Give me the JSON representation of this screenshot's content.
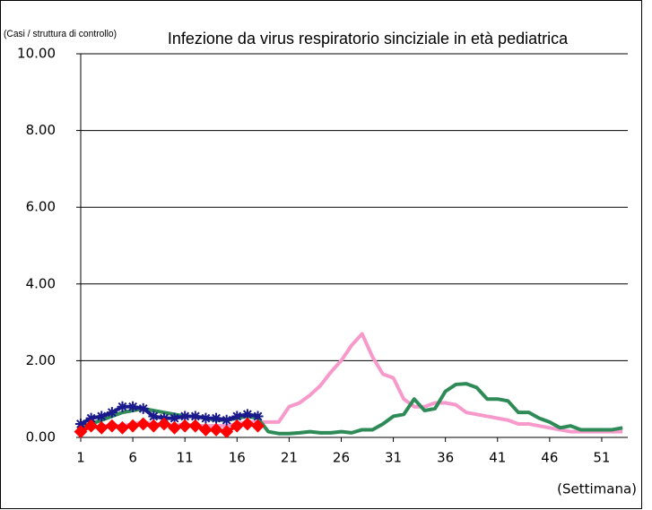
{
  "chart_data": {
    "type": "line",
    "title": "Infezione da virus respiratorio sinciziale in età pediatrica",
    "y_label": "(Casi / struttura di controllo)",
    "x_label": "(Settimana)",
    "x": [
      1,
      2,
      3,
      4,
      5,
      6,
      7,
      8,
      9,
      10,
      11,
      12,
      13,
      14,
      15,
      16,
      17,
      18,
      19,
      20,
      21,
      22,
      23,
      24,
      25,
      26,
      27,
      28,
      29,
      30,
      31,
      32,
      33,
      34,
      35,
      36,
      37,
      38,
      39,
      40,
      41,
      42,
      43,
      44,
      45,
      46,
      47,
      48,
      49,
      50,
      51,
      52,
      53
    ],
    "xlim": [
      1,
      53.5
    ],
    "xticks": [
      1,
      6,
      11,
      16,
      21,
      26,
      31,
      36,
      41,
      46,
      51
    ],
    "ylim": [
      0,
      10
    ],
    "yticks": [
      {
        "value": 0,
        "label": "0.00"
      },
      {
        "value": 2,
        "label": "2.00"
      },
      {
        "value": 4,
        "label": "4.00"
      },
      {
        "value": 6,
        "label": "6.00"
      },
      {
        "value": 8,
        "label": "8.00"
      },
      {
        "value": 10,
        "label": "10.00"
      }
    ],
    "grid": true,
    "series": [
      {
        "color": "#f79acb",
        "marker": "none",
        "values": [
          0.2,
          0.25,
          0.3,
          0.3,
          0.3,
          0.35,
          0.4,
          0.35,
          0.35,
          0.3,
          0.35,
          0.3,
          0.3,
          0.3,
          0.3,
          0.35,
          0.4,
          0.4,
          0.4,
          0.4,
          0.8,
          0.9,
          1.1,
          1.35,
          1.7,
          2.0,
          2.4,
          2.7,
          2.1,
          1.65,
          1.55,
          1.0,
          0.8,
          0.8,
          0.9,
          0.9,
          0.85,
          0.65,
          0.6,
          0.55,
          0.5,
          0.45,
          0.35,
          0.35,
          0.3,
          0.25,
          0.2,
          0.15,
          0.15,
          0.15,
          0.15,
          0.15,
          0.15
        ]
      },
      {
        "color": "#2e8b57",
        "marker": "none",
        "values": [
          0.3,
          0.35,
          0.45,
          0.55,
          0.65,
          0.7,
          0.75,
          0.7,
          0.65,
          0.6,
          0.55,
          0.55,
          0.5,
          0.45,
          0.45,
          0.5,
          0.55,
          0.5,
          0.15,
          0.1,
          0.1,
          0.12,
          0.15,
          0.12,
          0.12,
          0.15,
          0.12,
          0.2,
          0.2,
          0.35,
          0.55,
          0.6,
          1.0,
          0.7,
          0.75,
          1.2,
          1.38,
          1.4,
          1.3,
          1.0,
          1.0,
          0.95,
          0.65,
          0.65,
          0.5,
          0.4,
          0.25,
          0.3,
          0.2,
          0.2,
          0.2,
          0.2,
          0.25
        ]
      },
      {
        "color": "#1a1a8c",
        "marker": "asterisk",
        "values": [
          0.35,
          0.5,
          0.55,
          0.65,
          0.8,
          0.8,
          0.75,
          0.55,
          0.5,
          0.5,
          0.55,
          0.55,
          0.5,
          0.5,
          0.45,
          0.55,
          0.6,
          0.55,
          null,
          null,
          null,
          null,
          null,
          null,
          null,
          null,
          null,
          null,
          null,
          null,
          null,
          null,
          null,
          null,
          null,
          null,
          null,
          null,
          null,
          null,
          null,
          null,
          null,
          null,
          null,
          null,
          null,
          null,
          null,
          null,
          null,
          null,
          null
        ]
      },
      {
        "color": "#ff0000",
        "marker": "diamond",
        "values": [
          0.15,
          0.3,
          0.25,
          0.3,
          0.25,
          0.3,
          0.35,
          0.3,
          0.35,
          0.25,
          0.3,
          0.3,
          0.2,
          0.2,
          0.15,
          0.3,
          0.35,
          0.3,
          null,
          null,
          null,
          null,
          null,
          null,
          null,
          null,
          null,
          null,
          null,
          null,
          null,
          null,
          null,
          null,
          null,
          null,
          null,
          null,
          null,
          null,
          null,
          null,
          null,
          null,
          null,
          null,
          null,
          null,
          null,
          null,
          null,
          null,
          null
        ]
      }
    ]
  }
}
